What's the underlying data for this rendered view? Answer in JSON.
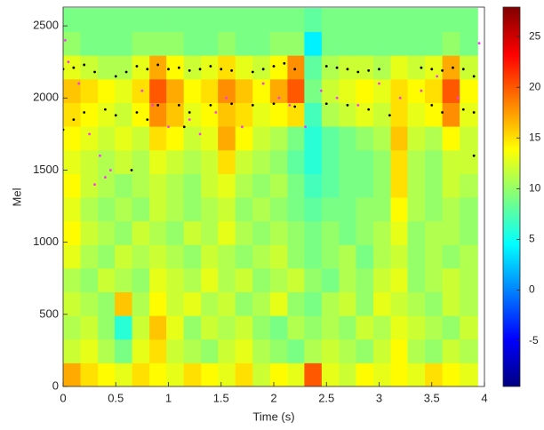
{
  "chart_data": {
    "type": "heatmap",
    "xlabel": "Time (s)",
    "ylabel": "Mel",
    "colormap": "jet",
    "xlim": [
      0,
      4
    ],
    "ylim": [
      0,
      2630
    ],
    "xticks": [
      0,
      0.5,
      1,
      1.5,
      2,
      2.5,
      3,
      3.5,
      4
    ],
    "yticks": [
      0,
      500,
      1000,
      1500,
      2000,
      2500
    ],
    "clim": [
      -9.5,
      27.9
    ],
    "cticks": [
      -5,
      0,
      5,
      10,
      15,
      20,
      25
    ],
    "x": [
      0.08,
      0.25,
      0.41,
      0.57,
      0.74,
      0.9,
      1.06,
      1.23,
      1.39,
      1.55,
      1.72,
      1.88,
      2.05,
      2.21,
      2.37,
      2.54,
      2.7,
      2.86,
      3.03,
      3.19,
      3.35,
      3.52,
      3.68,
      3.85
    ],
    "y": [
      82,
      246,
      410,
      574,
      738,
      902,
      1066,
      1230,
      1394,
      1558,
      1722,
      1886,
      2050,
      2214,
      2378,
      2542
    ],
    "z": [
      [
        17,
        15,
        14,
        13,
        15,
        14,
        13,
        15,
        14,
        13,
        15,
        12,
        14,
        13,
        20,
        13,
        12,
        14,
        13,
        14,
        13,
        15,
        14,
        13
      ],
      [
        12,
        13,
        11,
        9,
        13,
        15,
        12,
        11,
        10,
        12,
        13,
        11,
        10,
        9,
        11,
        12,
        11,
        10,
        12,
        14,
        11,
        10,
        12,
        11
      ],
      [
        11,
        12,
        10,
        6,
        12,
        16,
        13,
        10,
        12,
        11,
        12,
        10,
        9,
        11,
        10,
        11,
        10,
        12,
        11,
        13,
        12,
        11,
        10,
        12
      ],
      [
        12,
        11,
        10,
        16,
        11,
        14,
        12,
        13,
        11,
        12,
        10,
        11,
        13,
        10,
        9,
        11,
        12,
        10,
        13,
        12,
        11,
        10,
        12,
        11
      ],
      [
        11,
        10,
        12,
        11,
        10,
        13,
        12,
        11,
        13,
        11,
        12,
        10,
        11,
        12,
        10,
        9,
        11,
        10,
        12,
        13,
        10,
        11,
        12,
        11
      ],
      [
        13,
        11,
        10,
        12,
        11,
        12,
        11,
        10,
        12,
        11,
        10,
        11,
        12,
        10,
        9,
        10,
        11,
        9,
        11,
        12,
        10,
        11,
        10,
        11
      ],
      [
        14,
        12,
        11,
        10,
        12,
        11,
        10,
        12,
        11,
        13,
        11,
        10,
        11,
        10,
        9,
        10,
        9,
        10,
        11,
        13,
        10,
        11,
        11,
        10
      ],
      [
        13,
        11,
        10,
        11,
        10,
        12,
        11,
        10,
        11,
        12,
        10,
        11,
        10,
        9,
        8,
        9,
        9,
        10,
        10,
        14,
        11,
        10,
        11,
        10
      ],
      [
        14,
        12,
        11,
        10,
        11,
        12,
        11,
        10,
        12,
        13,
        11,
        10,
        11,
        9,
        7,
        8,
        9,
        9,
        10,
        15,
        11,
        10,
        12,
        11
      ],
      [
        13,
        12,
        11,
        12,
        11,
        13,
        12,
        11,
        12,
        15,
        12,
        11,
        10,
        8,
        6,
        8,
        9,
        9,
        10,
        15,
        11,
        10,
        12,
        12
      ],
      [
        14,
        13,
        12,
        13,
        12,
        15,
        14,
        12,
        13,
        17,
        14,
        12,
        11,
        9,
        6,
        8,
        9,
        10,
        11,
        16,
        12,
        11,
        14,
        12
      ],
      [
        15,
        14,
        13,
        12,
        14,
        18,
        16,
        13,
        14,
        16,
        15,
        13,
        14,
        15,
        7,
        11,
        12,
        13,
        12,
        15,
        13,
        14,
        18,
        13
      ],
      [
        16,
        15,
        14,
        13,
        15,
        20,
        17,
        14,
        15,
        18,
        16,
        14,
        17,
        20,
        9,
        12,
        13,
        14,
        13,
        15,
        14,
        15,
        20,
        14
      ],
      [
        13,
        12,
        11,
        11,
        13,
        17,
        14,
        12,
        13,
        15,
        13,
        12,
        14,
        18,
        8,
        11,
        12,
        12,
        11,
        13,
        12,
        13,
        17,
        12
      ],
      [
        10,
        9,
        9,
        9,
        10,
        10,
        10,
        9,
        9,
        10,
        9,
        9,
        10,
        10,
        4,
        9,
        9,
        9,
        9,
        9,
        9,
        9,
        10,
        9
      ],
      [
        9,
        9,
        9,
        9,
        9,
        9,
        9,
        9,
        9,
        9,
        9,
        9,
        9,
        9,
        8,
        9,
        9,
        9,
        9,
        9,
        9,
        9,
        9,
        9
      ]
    ],
    "overlays": [
      {
        "color": "#ff33ff",
        "x": [
          0.05,
          0.15,
          0.25,
          0.35,
          0.4,
          0.45,
          0.75,
          0.85,
          1.0,
          1.2,
          1.3,
          1.45,
          1.55,
          1.7,
          1.9,
          2.05,
          2.15,
          2.3,
          2.45,
          2.6,
          2.8,
          3.0,
          3.2,
          3.4,
          3.55,
          3.75,
          3.95,
          0.3,
          0.02
        ],
        "y": [
          2250,
          2100,
          1750,
          1600,
          1450,
          1500,
          2050,
          1950,
          1800,
          1850,
          1750,
          1900,
          2000,
          1800,
          2100,
          2000,
          1950,
          1800,
          2050,
          2000,
          1950,
          2100,
          2000,
          2050,
          2150,
          2000,
          2380,
          1400,
          2400
        ]
      },
      {
        "color": "#000000",
        "x": [
          0.0,
          0.1,
          0.2,
          0.3,
          0.5,
          0.6,
          0.7,
          0.8,
          0.9,
          1.0,
          1.1,
          1.2,
          1.3,
          1.4,
          1.5,
          1.6,
          1.8,
          1.9,
          2.0,
          2.1,
          2.2,
          2.5,
          2.6,
          2.7,
          2.8,
          2.9,
          3.0,
          3.4,
          3.5,
          3.6,
          3.7,
          3.8,
          3.9,
          0.0,
          0.1,
          0.2,
          0.4,
          0.5,
          0.7,
          0.8,
          0.9,
          1.1,
          1.2,
          1.4,
          1.6,
          1.8,
          2.0,
          2.2,
          2.5,
          2.7,
          2.9,
          3.1,
          3.5,
          3.6,
          3.8,
          3.9,
          0.65,
          1.15,
          3.9
        ],
        "y": [
          2200,
          2210,
          2230,
          2180,
          2150,
          2180,
          2220,
          2200,
          2230,
          2200,
          2210,
          2190,
          2200,
          2220,
          2200,
          2190,
          2180,
          2200,
          2220,
          2240,
          2200,
          2220,
          2210,
          2200,
          2180,
          2190,
          2200,
          2210,
          2200,
          2190,
          2210,
          2200,
          2150,
          1780,
          1850,
          1900,
          1920,
          1880,
          1900,
          1850,
          1950,
          1950,
          1900,
          1950,
          1960,
          1950,
          1960,
          1940,
          1960,
          1950,
          1920,
          1880,
          1950,
          1900,
          1920,
          1900,
          1500,
          1800,
          1600
        ]
      }
    ]
  }
}
